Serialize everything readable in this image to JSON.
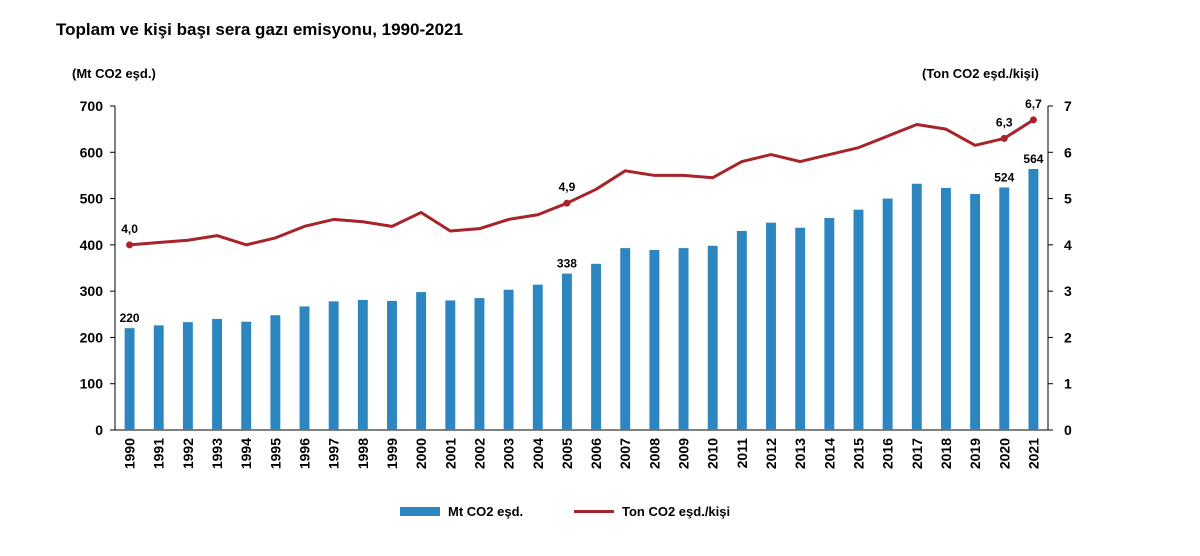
{
  "chart_data": {
    "type": "bar",
    "title": "Toplam ve kişi başı sera gazı emisyonu, 1990-2021",
    "ylabel": "(Mt CO2 eşd.)",
    "y2label": "(Ton CO2 eşd./kişi)",
    "categories": [
      "1990",
      "1991",
      "1992",
      "1993",
      "1994",
      "1995",
      "1996",
      "1997",
      "1998",
      "1999",
      "2000",
      "2001",
      "2002",
      "2003",
      "2004",
      "2005",
      "2006",
      "2007",
      "2008",
      "2009",
      "2010",
      "2011",
      "2012",
      "2013",
      "2014",
      "2015",
      "2016",
      "2017",
      "2018",
      "2019",
      "2020",
      "2021"
    ],
    "ylim": [
      0,
      700
    ],
    "y2lim": [
      0,
      7
    ],
    "yticks": [
      0,
      100,
      200,
      300,
      400,
      500,
      600,
      700
    ],
    "y2ticks": [
      0,
      1,
      2,
      3,
      4,
      5,
      6,
      7
    ],
    "grid": false,
    "legend_position": "bottom",
    "series": [
      {
        "name": "Mt CO2 eşd.",
        "type": "bar",
        "axis": "left",
        "color": "#2e86c1",
        "values": [
          220,
          226,
          233,
          240,
          234,
          248,
          267,
          278,
          281,
          279,
          298,
          280,
          285,
          303,
          314,
          338,
          359,
          393,
          389,
          393,
          398,
          430,
          448,
          437,
          458,
          476,
          500,
          532,
          523,
          510,
          524,
          564
        ],
        "data_labels": {
          "1990": "220",
          "2005": "338",
          "2020": "524",
          "2021": "564"
        }
      },
      {
        "name": "Ton CO2 eşd./kişi",
        "type": "line",
        "axis": "right",
        "color": "#a8232a",
        "values": [
          4.0,
          4.05,
          4.1,
          4.2,
          4.0,
          4.15,
          4.4,
          4.55,
          4.5,
          4.4,
          4.7,
          4.3,
          4.35,
          4.55,
          4.65,
          4.9,
          5.2,
          5.6,
          5.5,
          5.5,
          5.45,
          5.8,
          5.95,
          5.8,
          5.95,
          6.1,
          6.35,
          6.6,
          6.5,
          6.15,
          6.3,
          6.7
        ],
        "data_labels": {
          "1990": "4,0",
          "2005": "4,9",
          "2020": "6,3",
          "2021": "6,7"
        }
      }
    ]
  }
}
